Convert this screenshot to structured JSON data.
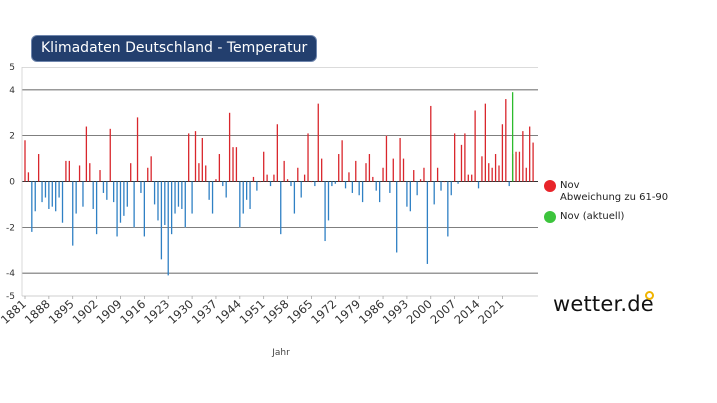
{
  "title": "Klimadaten Deutschland - Temperatur",
  "legend": [
    {
      "color": "#e8242a",
      "label_line1": "Nov",
      "label_line2": "Abweichung zu 61-90"
    },
    {
      "color": "#3cc43c",
      "label_line1": "Nov (aktuell)",
      "label_line2": ""
    }
  ],
  "logo": "wetter.de",
  "chart_data": {
    "type": "bar",
    "title": "Klimadaten Deutschland - Temperatur",
    "xlabel": "Jahr",
    "ylabel": "",
    "ylim": [
      -5,
      5
    ],
    "yticks": [
      5,
      4,
      2,
      0,
      -2,
      -4,
      -5
    ],
    "gridlines": [
      4,
      2,
      0,
      -2,
      -4
    ],
    "x_tick_labels": [
      "1881",
      "1888",
      "1895",
      "1902",
      "1909",
      "1916",
      "1923",
      "1930",
      "1937",
      "1944",
      "1951",
      "1958",
      "1965",
      "1972",
      "1979",
      "1986",
      "1993",
      "2000",
      "2007",
      "2014",
      "2021"
    ],
    "first_year": 1881,
    "colors": {
      "positive": "#d9262c",
      "negative": "#2f80c4",
      "current": "#2dbb2d"
    },
    "series": [
      {
        "name": "Nov Abweichung zu 61-90",
        "values": [
          1.8,
          0.4,
          -2.2,
          -1.3,
          1.2,
          -0.9,
          -0.7,
          -1.2,
          -1.1,
          -1.3,
          -0.7,
          -1.8,
          0.9,
          0.9,
          -2.8,
          -1.4,
          0.7,
          -1.1,
          2.4,
          0.8,
          -1.2,
          -2.3,
          0.5,
          -0.5,
          -0.8,
          2.3,
          -0.9,
          -2.4,
          -1.8,
          -1.5,
          -1.1,
          0.8,
          -2.0,
          2.8,
          -0.5,
          -2.4,
          0.6,
          1.1,
          -1.0,
          -1.7,
          -3.4,
          -1.9,
          -4.1,
          -2.3,
          -1.4,
          -1.1,
          -1.2,
          -2.0,
          2.1,
          -1.4,
          2.2,
          0.8,
          1.9,
          0.7,
          -0.8,
          -1.4,
          0.1,
          1.2,
          -0.2,
          -0.7,
          3.0,
          1.5,
          1.5,
          -2.0,
          -1.4,
          -0.8,
          -1.2,
          0.2,
          -0.4,
          0.0,
          1.3,
          0.3,
          -0.2,
          0.3,
          2.5,
          -2.3,
          0.9,
          0.1,
          -0.2,
          -1.4,
          0.6,
          -0.7,
          0.3,
          2.1,
          0.0,
          -0.2,
          3.4,
          1.0,
          -2.6,
          -1.7,
          -0.2,
          -0.1,
          1.2,
          1.8,
          -0.3,
          0.4,
          -0.5,
          0.9,
          -0.6,
          -0.9,
          0.8,
          1.2,
          0.2,
          -0.4,
          -0.9,
          0.6,
          2.0,
          -0.5,
          1.0,
          -3.1,
          1.9,
          1.0,
          -1.1,
          -1.3,
          0.5,
          -0.6,
          0.1,
          0.6,
          -3.6,
          3.3,
          -1.0,
          0.6,
          -0.4,
          0.0,
          -2.4,
          -0.6,
          2.1,
          -0.1,
          1.6,
          2.1,
          0.3,
          0.3,
          3.1,
          -0.3,
          1.1,
          3.4,
          0.8,
          0.6,
          1.2,
          0.7,
          2.5,
          3.6,
          -0.2,
          1.2,
          1.3,
          1.3,
          2.2,
          0.6,
          2.4,
          1.7
        ]
      },
      {
        "name": "Nov (aktuell)",
        "year": 2024,
        "values": [
          3.9
        ]
      }
    ]
  }
}
